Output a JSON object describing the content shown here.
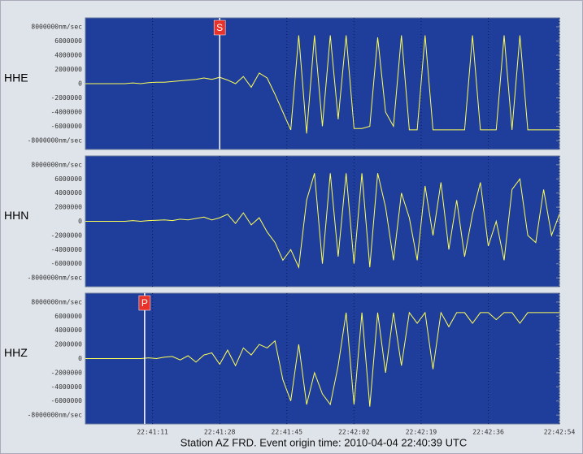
{
  "chart_data": [
    {
      "type": "line",
      "ylabel": "HHE",
      "color": "#ffff55",
      "xlim": [
        81654,
        81774
      ],
      "ylim": [
        -9250000,
        9250000
      ],
      "yticks": [
        {
          "value": 8000000,
          "label": "8000000nm/sec"
        },
        6000000,
        4000000,
        2000000,
        0,
        -2000000,
        -4000000,
        -6000000,
        {
          "value": -8000000,
          "label": "-8000000nm/sec"
        }
      ],
      "markers": [
        {
          "label": "S",
          "x": 81688
        }
      ],
      "x": [
        81654,
        81656,
        81658,
        81660,
        81662,
        81664,
        81666,
        81668,
        81670,
        81672,
        81674,
        81676,
        81678,
        81680,
        81682,
        81684,
        81686,
        81688,
        81690,
        81692,
        81694,
        81696,
        81698,
        81700,
        81702,
        81704,
        81706,
        81708,
        81710,
        81712,
        81714,
        81716,
        81718,
        81720,
        81722,
        81724,
        81726,
        81728,
        81730,
        81732,
        81734,
        81736,
        81738,
        81740,
        81742,
        81744,
        81746,
        81748,
        81750,
        81752,
        81754,
        81756,
        81758,
        81760,
        81762,
        81764,
        81766,
        81768,
        81770,
        81772,
        81774
      ],
      "values": [
        0,
        0,
        0,
        0,
        0,
        0,
        100000,
        0,
        150000,
        200000,
        200000,
        300000,
        400000,
        500000,
        600000,
        800000,
        600000,
        900000,
        500000,
        0,
        1000000,
        -500000,
        1500000,
        800000,
        -1500000,
        -4000000,
        -6500000,
        6800000,
        -7000000,
        6800000,
        -6000000,
        6800000,
        -5000000,
        6800000,
        -6300000,
        -6300000,
        -6000000,
        6500000,
        -4000000,
        -6000000,
        6800000,
        -6500000,
        -6500000,
        6800000,
        -6500000,
        -6500000,
        -6500000,
        -6500000,
        -6500000,
        6800000,
        -6500000,
        -6500000,
        -6500000,
        6800000,
        -6500000,
        6800000,
        -6500000,
        -6500000,
        -6500000,
        -6500000,
        -6500000
      ]
    },
    {
      "type": "line",
      "ylabel": "HHN",
      "color": "#ffff55",
      "xlim": [
        81654,
        81774
      ],
      "ylim": [
        -9250000,
        9250000
      ],
      "yticks": [
        {
          "value": 8000000,
          "label": "8000000nm/sec"
        },
        6000000,
        4000000,
        2000000,
        0,
        -2000000,
        -4000000,
        -6000000,
        {
          "value": -8000000,
          "label": "-8000000nm/sec"
        }
      ],
      "x": [
        81654,
        81656,
        81658,
        81660,
        81662,
        81664,
        81666,
        81668,
        81670,
        81672,
        81674,
        81676,
        81678,
        81680,
        81682,
        81684,
        81686,
        81688,
        81690,
        81692,
        81694,
        81696,
        81698,
        81700,
        81702,
        81704,
        81706,
        81708,
        81710,
        81712,
        81714,
        81716,
        81718,
        81720,
        81722,
        81724,
        81726,
        81728,
        81730,
        81732,
        81734,
        81736,
        81738,
        81740,
        81742,
        81744,
        81746,
        81748,
        81750,
        81752,
        81754,
        81756,
        81758,
        81760,
        81762,
        81764,
        81766,
        81768,
        81770,
        81772,
        81774
      ],
      "values": [
        0,
        0,
        0,
        0,
        0,
        0,
        100000,
        0,
        100000,
        150000,
        200000,
        100000,
        300000,
        200000,
        400000,
        600000,
        200000,
        500000,
        1000000,
        -300000,
        1200000,
        -500000,
        500000,
        -1500000,
        -3000000,
        -5500000,
        -4000000,
        -6500000,
        3000000,
        6800000,
        -6000000,
        6800000,
        -5000000,
        6800000,
        -6000000,
        6800000,
        -6500000,
        6800000,
        2000000,
        -5500000,
        4000000,
        500000,
        -5500000,
        5000000,
        -2000000,
        5500000,
        -4000000,
        3000000,
        -5000000,
        1000000,
        5500000,
        -3500000,
        0,
        -5500000,
        4500000,
        6000000,
        -2000000,
        -3000000,
        4500000,
        -2000000,
        1000000
      ]
    },
    {
      "type": "line",
      "ylabel": "HHZ",
      "color": "#ffff55",
      "xlim": [
        81654,
        81774
      ],
      "ylim": [
        -9250000,
        9250000
      ],
      "yticks": [
        {
          "value": 8000000,
          "label": "8000000nm/sec"
        },
        6000000,
        4000000,
        2000000,
        0,
        -2000000,
        -4000000,
        -6000000,
        {
          "value": -8000000,
          "label": "-8000000nm/sec"
        }
      ],
      "xticks": [
        {
          "value": 81671,
          "label": "22:41:11"
        },
        {
          "value": 81688,
          "label": "22:41:28"
        },
        {
          "value": 81705,
          "label": "22:41:45"
        },
        {
          "value": 81722,
          "label": "22:42:02"
        },
        {
          "value": 81739,
          "label": "22:42:19"
        },
        {
          "value": 81756,
          "label": "22:42:36"
        },
        {
          "value": 81774,
          "label": "22:42:54"
        }
      ],
      "xlabel": "Station AZ FRD.  Event origin time: 2010-04-04 22:40:39 UTC",
      "markers": [
        {
          "label": "P",
          "x": 81669
        }
      ],
      "x": [
        81654,
        81656,
        81658,
        81660,
        81662,
        81664,
        81666,
        81668,
        81670,
        81672,
        81674,
        81676,
        81678,
        81680,
        81682,
        81684,
        81686,
        81688,
        81690,
        81692,
        81694,
        81696,
        81698,
        81700,
        81702,
        81704,
        81706,
        81708,
        81710,
        81712,
        81714,
        81716,
        81718,
        81720,
        81722,
        81724,
        81726,
        81728,
        81730,
        81732,
        81734,
        81736,
        81738,
        81740,
        81742,
        81744,
        81746,
        81748,
        81750,
        81752,
        81754,
        81756,
        81758,
        81760,
        81762,
        81764,
        81766,
        81768,
        81770,
        81772,
        81774
      ],
      "values": [
        0,
        0,
        0,
        0,
        0,
        0,
        0,
        0,
        100000,
        0,
        200000,
        300000,
        -200000,
        400000,
        -500000,
        500000,
        800000,
        -800000,
        1200000,
        -1000000,
        1500000,
        500000,
        2000000,
        1500000,
        2500000,
        -3000000,
        -6000000,
        2000000,
        -6500000,
        -2000000,
        -5000000,
        -6500000,
        -1000000,
        6500000,
        -6500000,
        6500000,
        -6800000,
        6500000,
        -2000000,
        6500000,
        -1000000,
        6500000,
        5000000,
        6500000,
        -1500000,
        6500000,
        4500000,
        6500000,
        6500000,
        5000000,
        6500000,
        6500000,
        5500000,
        6500000,
        6500000,
        5000000,
        6500000,
        6500000,
        6500000,
        6500000,
        6500000
      ]
    }
  ]
}
